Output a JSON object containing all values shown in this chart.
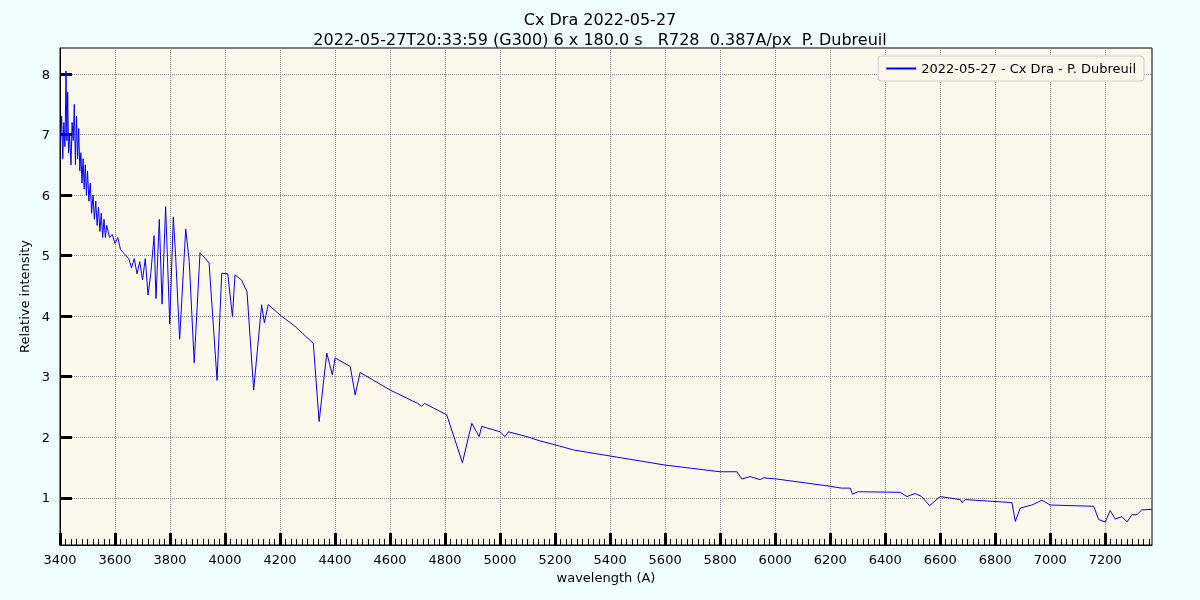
{
  "chart_data": {
    "type": "line",
    "title": "Cx Dra 2022-05-27",
    "subtitle": "2022-05-27T20:33:59 (G300) 6 x 180.0 s   R728  0.387A/px  P. Dubreuil",
    "xlabel": "wavelength (A)",
    "ylabel": "Relative intensity",
    "x": [
      3402,
      3406,
      3410,
      3414,
      3418,
      3422,
      3425,
      3428,
      3431,
      3435,
      3440,
      3444,
      3448,
      3452,
      3456,
      3460,
      3464,
      3468,
      3472,
      3476,
      3480,
      3484,
      3488,
      3492,
      3496,
      3500,
      3505,
      3510,
      3515,
      3520,
      3525,
      3530,
      3535,
      3540,
      3545,
      3550,
      3555,
      3560,
      3565,
      3570,
      3580,
      3590,
      3600,
      3610,
      3620,
      3630,
      3640,
      3650,
      3660,
      3670,
      3680,
      3690,
      3700,
      3710,
      3720,
      3730,
      3742,
      3749,
      3761,
      3771,
      3784,
      3799,
      3812,
      3820,
      3835,
      3857,
      3870,
      3888,
      3909,
      3942,
      3971,
      3988,
      4010,
      4027,
      4036,
      4060,
      4080,
      4104,
      4133,
      4143,
      4157,
      4200,
      4255,
      4321,
      4342,
      4370,
      4390,
      4400,
      4455,
      4473,
      4491,
      4600,
      4700,
      4715,
      4725,
      4806,
      4863,
      4897,
      4924,
      4933,
      5000,
      5018,
      5030,
      5097,
      5145,
      5212,
      5267,
      5400,
      5600,
      5800,
      5861,
      5879,
      5909,
      5945,
      5958,
      6006,
      6200,
      6240,
      6273,
      6281,
      6302,
      6455,
      6479,
      6509,
      6533,
      6561,
      6600,
      6673,
      6679,
      6691,
      6861,
      6873,
      6891,
      6915,
      6933,
      6970,
      7000,
      7158,
      7176,
      7200,
      7218,
      7236,
      7261,
      7279,
      7297,
      7315,
      7333,
      7370
    ],
    "series": [
      {
        "name": "2022-05-27 - Cx Dra - P. Dubreuil",
        "color": "#0000ff",
        "values": [
          6.9,
          7.3,
          6.6,
          7.2,
          6.8,
          8.05,
          6.9,
          7.7,
          6.7,
          7.0,
          6.5,
          7.2,
          6.9,
          7.5,
          6.5,
          7.3,
          6.6,
          7.1,
          6.4,
          6.7,
          6.2,
          6.6,
          6.1,
          6.5,
          6.0,
          6.4,
          5.9,
          6.2,
          5.7,
          6.0,
          5.6,
          5.9,
          5.5,
          5.8,
          5.4,
          5.7,
          5.3,
          5.6,
          5.3,
          5.5,
          5.3,
          5.35,
          5.2,
          5.3,
          5.1,
          5.05,
          5.0,
          4.95,
          4.8,
          4.95,
          4.7,
          4.9,
          4.6,
          4.95,
          4.35,
          4.7,
          5.33,
          4.29,
          5.6,
          4.2,
          5.81,
          3.87,
          5.64,
          5.03,
          3.62,
          5.44,
          4.9,
          3.23,
          5.05,
          4.88,
          2.94,
          4.71,
          4.7,
          3.99,
          4.68,
          4.6,
          4.4,
          2.78,
          4.19,
          3.89,
          4.19,
          4.02,
          3.83,
          3.55,
          2.26,
          3.39,
          3.03,
          3.31,
          3.17,
          2.7,
          3.07,
          2.78,
          2.56,
          2.51,
          2.56,
          2.37,
          1.58,
          2.23,
          2.01,
          2.18,
          2.09,
          2.01,
          2.09,
          2.01,
          1.94,
          1.86,
          1.79,
          1.69,
          1.54,
          1.43,
          1.43,
          1.31,
          1.35,
          1.3,
          1.33,
          1.31,
          1.19,
          1.16,
          1.16,
          1.06,
          1.1,
          1.09,
          1.02,
          1.07,
          1.02,
          0.87,
          1.02,
          0.97,
          0.92,
          0.97,
          0.92,
          0.61,
          0.83,
          0.86,
          0.88,
          0.96,
          0.88,
          0.86,
          0.64,
          0.6,
          0.79,
          0.65,
          0.69,
          0.6,
          0.72,
          0.72,
          0.8,
          0.81
        ]
      }
    ],
    "xlim": [
      3400,
      7370
    ],
    "ylim": [
      0.22,
      8.43
    ],
    "xticks": [
      3400,
      3600,
      3800,
      4000,
      4200,
      4400,
      4600,
      4800,
      5000,
      5200,
      5400,
      5600,
      5800,
      6000,
      6200,
      6400,
      6600,
      6800,
      7000,
      7200
    ],
    "yticks": [
      1,
      2,
      3,
      4,
      5,
      6,
      7,
      8
    ],
    "grid": true,
    "legend": "top right",
    "marker": "none",
    "line_style": "solid"
  }
}
